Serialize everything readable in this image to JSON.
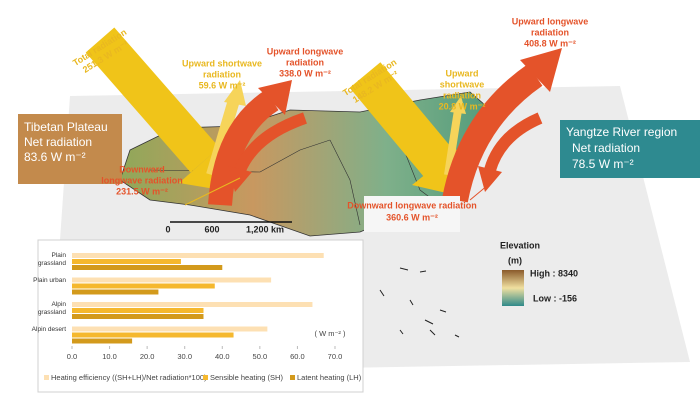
{
  "diagram": {
    "tibet": {
      "total": [
        "Total radiation",
        "251.3 W m⁻²"
      ],
      "up_shortwave": [
        "Upward shortwave",
        "radiation",
        "59.6 W m⁻²"
      ],
      "up_longwave": [
        "Upward longwave",
        "radiation",
        "338.0 W m⁻²"
      ],
      "down_longwave": [
        "Downward",
        "longwave radiation",
        "231.5 W m⁻²"
      ],
      "net": [
        "Tibetan Plateau",
        "Net radiation",
        "83.6 W m⁻²"
      ]
    },
    "yangtze": {
      "total": [
        "Total radiation",
        "148.2 W m⁻²"
      ],
      "up_shortwave": [
        "Upward",
        "shortwave",
        "radiation",
        "20.8 W m⁻²"
      ],
      "up_longwave": [
        "Upward longwave",
        "radiation",
        "408.8 W m⁻²"
      ],
      "down_longwave": [
        "Downward longwave radiation",
        "360.6 W m⁻²"
      ],
      "net": [
        "Yangtze River region",
        "Net radiation",
        "78.5 W m⁻²"
      ]
    },
    "scale": [
      "0",
      "600",
      "1,200 km"
    ],
    "legend": {
      "title": "Elevation",
      "unit": "(m)",
      "high": "High : 8340",
      "low": "Low : -156"
    }
  },
  "chart_data": {
    "type": "hbar",
    "xlabel": "( W m⁻² )",
    "categories": [
      "Plain grassland",
      "Plain urban",
      "Alpin grassland",
      "Alpin desert"
    ],
    "series": [
      {
        "name": "Heating efficiency ((SH+LH)/Net radiation*100)",
        "color": "#fde0b3",
        "values": [
          67,
          53,
          64,
          52
        ]
      },
      {
        "name": "Sensible heating (SH)",
        "color": "#f5b82e",
        "values": [
          29,
          38,
          35,
          43
        ]
      },
      {
        "name": "Latent heating (LH)",
        "color": "#d39a1c",
        "values": [
          40,
          23,
          35,
          16
        ]
      }
    ],
    "xlim": [
      0,
      72
    ],
    "xticks": [
      {
        "value": 0,
        "label": "0.0"
      },
      {
        "value": 10,
        "label": "10.0"
      },
      {
        "value": 20,
        "label": "20.0"
      },
      {
        "value": 30,
        "label": "30.0"
      },
      {
        "value": 40,
        "label": "40.0"
      },
      {
        "value": 50,
        "label": "50.0"
      },
      {
        "value": 60,
        "label": "60.0"
      },
      {
        "value": 70,
        "label": "70.0"
      }
    ],
    "grid": false
  }
}
